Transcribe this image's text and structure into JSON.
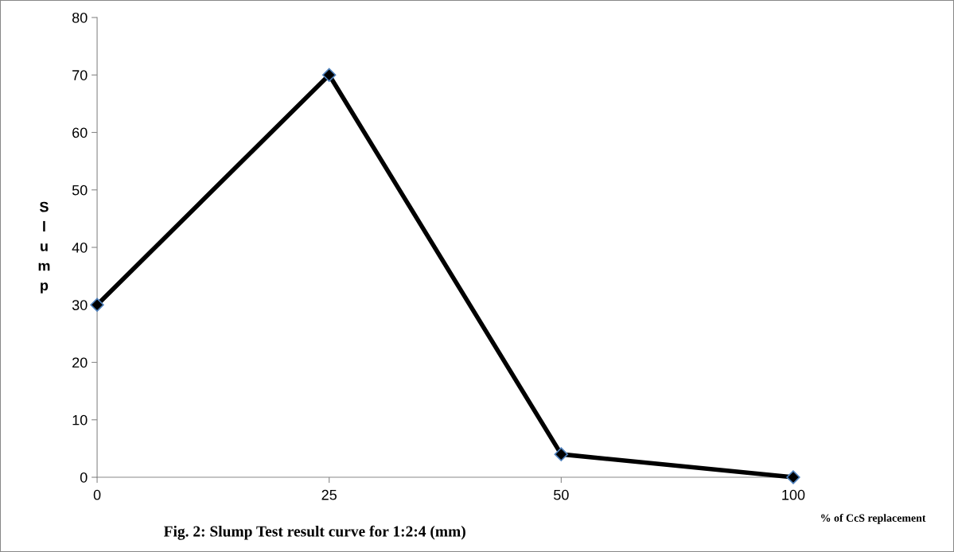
{
  "chart_data": {
    "type": "line",
    "categories": [
      "0",
      "25",
      "50",
      "100"
    ],
    "series": [
      {
        "color": "#000000",
        "values": [
          30,
          70,
          4,
          0
        ]
      }
    ],
    "ylim": [
      0,
      80
    ],
    "yticks": [
      0,
      10,
      20,
      30,
      40,
      50,
      60,
      70,
      80
    ],
    "ylabel": "Slump",
    "xlabel": "% of CcS replacement",
    "annotations": [
      "Fig. 2: Slump Test result curve for 1:2:4 (mm)"
    ],
    "marker": "diamond",
    "line_style": "solid"
  }
}
